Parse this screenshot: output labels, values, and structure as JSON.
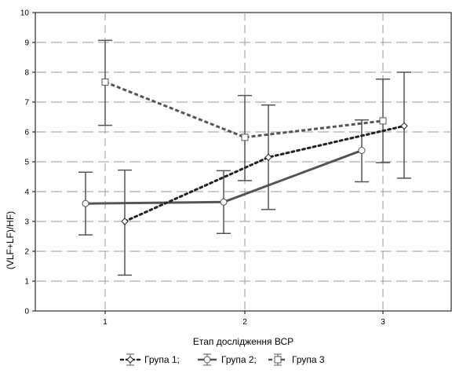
{
  "chart_data": {
    "type": "line",
    "xlabel": "Етап дослідження ВСР",
    "ylabel": "(VLF+LF)/HF)",
    "categories": [
      "1",
      "2",
      "3"
    ],
    "ylim": [
      0,
      10
    ],
    "yticks": [
      "0",
      "1",
      "2",
      "3",
      "4",
      "5",
      "6",
      "7",
      "8",
      "9",
      "10"
    ],
    "grid": true,
    "legend_position": "bottom",
    "series": [
      {
        "name": "Група 1",
        "style": "dotted",
        "marker": "diamond",
        "color": "#222222",
        "values": [
          3.0,
          5.15,
          6.2
        ],
        "lower": [
          1.2,
          3.4,
          4.45
        ],
        "upper": [
          4.72,
          6.9,
          8.0
        ]
      },
      {
        "name": "Група 2",
        "style": "solid",
        "marker": "circle",
        "color": "#555555",
        "values": [
          3.6,
          3.65,
          5.38
        ],
        "lower": [
          2.55,
          2.6,
          4.33
        ],
        "upper": [
          4.65,
          4.7,
          6.4
        ]
      },
      {
        "name": "Група 3",
        "style": "dashed",
        "marker": "square",
        "color": "#555555",
        "values": [
          7.67,
          5.82,
          6.37
        ],
        "lower": [
          6.22,
          4.37,
          4.97
        ],
        "upper": [
          9.07,
          7.22,
          7.77
        ]
      }
    ],
    "legend_separator": ";"
  }
}
